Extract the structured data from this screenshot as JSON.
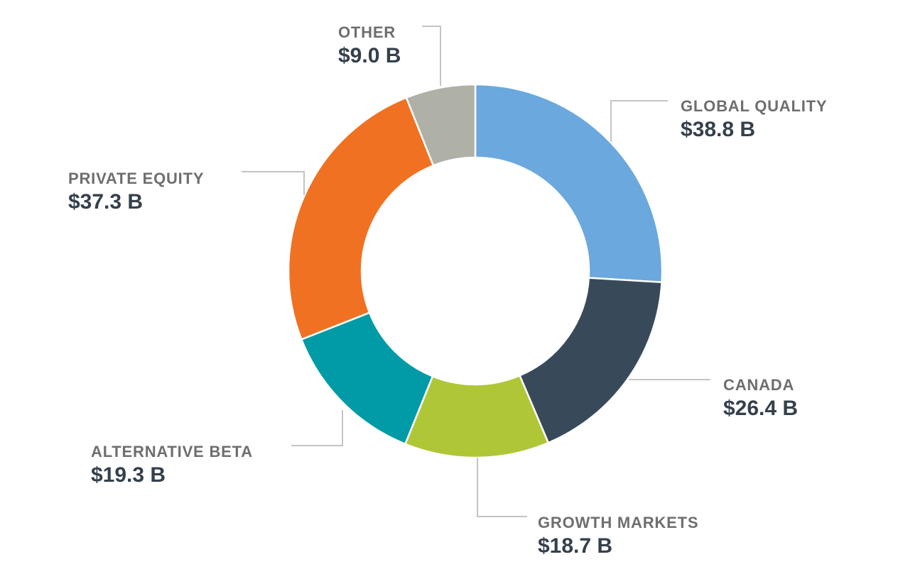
{
  "chart_data": {
    "type": "pie",
    "donut": true,
    "unit": "$ B",
    "slices": [
      {
        "label": "GLOBAL QUALITY",
        "value": 38.8,
        "display": "$38.8 B",
        "color": "#6aa8de"
      },
      {
        "label": "CANADA",
        "value": 26.4,
        "display": "$26.4 B",
        "color": "#384a5a"
      },
      {
        "label": "GROWTH MARKETS",
        "value": 18.7,
        "display": "$18.7 B",
        "color": "#afc637"
      },
      {
        "label": "ALTERNATIVE BETA",
        "value": 19.3,
        "display": "$19.3 B",
        "color": "#009ba6"
      },
      {
        "label": "PRIVATE EQUITY",
        "value": 37.3,
        "display": "$37.3 B",
        "color": "#f07122"
      },
      {
        "label": "OTHER",
        "value": 9.0,
        "display": "$9.0 B",
        "color": "#afb0a6"
      }
    ]
  }
}
